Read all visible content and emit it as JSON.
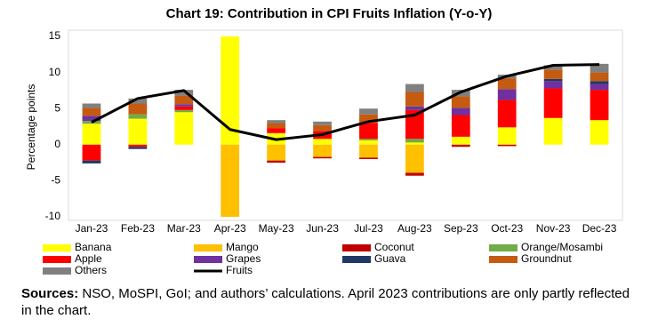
{
  "chart_data": {
    "type": "bar",
    "stacked": true,
    "title": "Chart 19: Contribution in CPI Fruits Inflation (Y-o-Y)",
    "y_label": "Percentage points",
    "categories": [
      "Jan-23",
      "Feb-23",
      "Mar-23",
      "Apr-23",
      "May-23",
      "Jun-23",
      "Jul-23",
      "Aug-23",
      "Sep-23",
      "Oct-23",
      "Nov-23",
      "Dec-23"
    ],
    "series": [
      {
        "name": "Banana",
        "color": "#ffff00",
        "values": [
          2.9,
          3.6,
          4.5,
          15,
          1.6,
          0.8,
          0.6,
          0.3,
          1.1,
          2.4,
          3.7,
          3.4
        ]
      },
      {
        "name": "Mango",
        "color": "#ffc000",
        "values": [
          0,
          0,
          0,
          -10,
          -2.2,
          -1.7,
          -1.8,
          -3.9,
          0,
          0,
          0,
          0
        ]
      },
      {
        "name": "Coconut",
        "color": "#c00000",
        "values": [
          0,
          0,
          0,
          0,
          -0.3,
          -0.2,
          -0.2,
          -0.4,
          -0.3,
          -0.2,
          0,
          0
        ]
      },
      {
        "name": "Orange/Mosambi",
        "color": "#70ad47",
        "values": [
          0.4,
          0.6,
          0.3,
          0,
          0,
          0,
          0.2,
          0.5,
          0,
          0,
          0,
          0
        ]
      },
      {
        "name": "Apple",
        "color": "#ff0000",
        "values": [
          -2.2,
          -0.3,
          0.5,
          0,
          0.7,
          1.1,
          2.2,
          4.0,
          3.0,
          3.8,
          4.1,
          4.2
        ]
      },
      {
        "name": "Grapes",
        "color": "#7030a0",
        "values": [
          0.7,
          0,
          0.3,
          0,
          0,
          0,
          0,
          0.5,
          1.0,
          1.5,
          1.0,
          0.8
        ]
      },
      {
        "name": "Guava",
        "color": "#203864",
        "values": [
          -0.4,
          -0.3,
          0,
          0,
          0,
          0,
          0,
          0,
          0,
          0,
          0.3,
          0.4
        ]
      },
      {
        "name": "Groundnut",
        "color": "#c55a11",
        "values": [
          1.1,
          1.5,
          1.2,
          0,
          0.7,
          0.8,
          1.2,
          2.0,
          1.6,
          1.5,
          1.3,
          1.2
        ]
      },
      {
        "name": "Others",
        "color": "#808080",
        "values": [
          0.6,
          0.7,
          0.8,
          0,
          0.4,
          0.5,
          0.8,
          1.1,
          0.9,
          0.5,
          0.6,
          1.2
        ]
      },
      {
        "name": "Fruits",
        "type": "line",
        "color": "#000000",
        "values": [
          3.1,
          6.4,
          7.5,
          2.1,
          0.7,
          1.4,
          3.2,
          4.1,
          7.3,
          9.5,
          11.0,
          11.1
        ]
      }
    ],
    "ylim": [
      -10,
      15
    ],
    "yticks": [
      -10,
      -5,
      0,
      5,
      10,
      15
    ],
    "grid": false,
    "source_label": "Sources:",
    "source_text": "NSO, MoSPI, GoI; and authors’ calculations. April 2023 contributions are only partly reflected in the chart."
  }
}
